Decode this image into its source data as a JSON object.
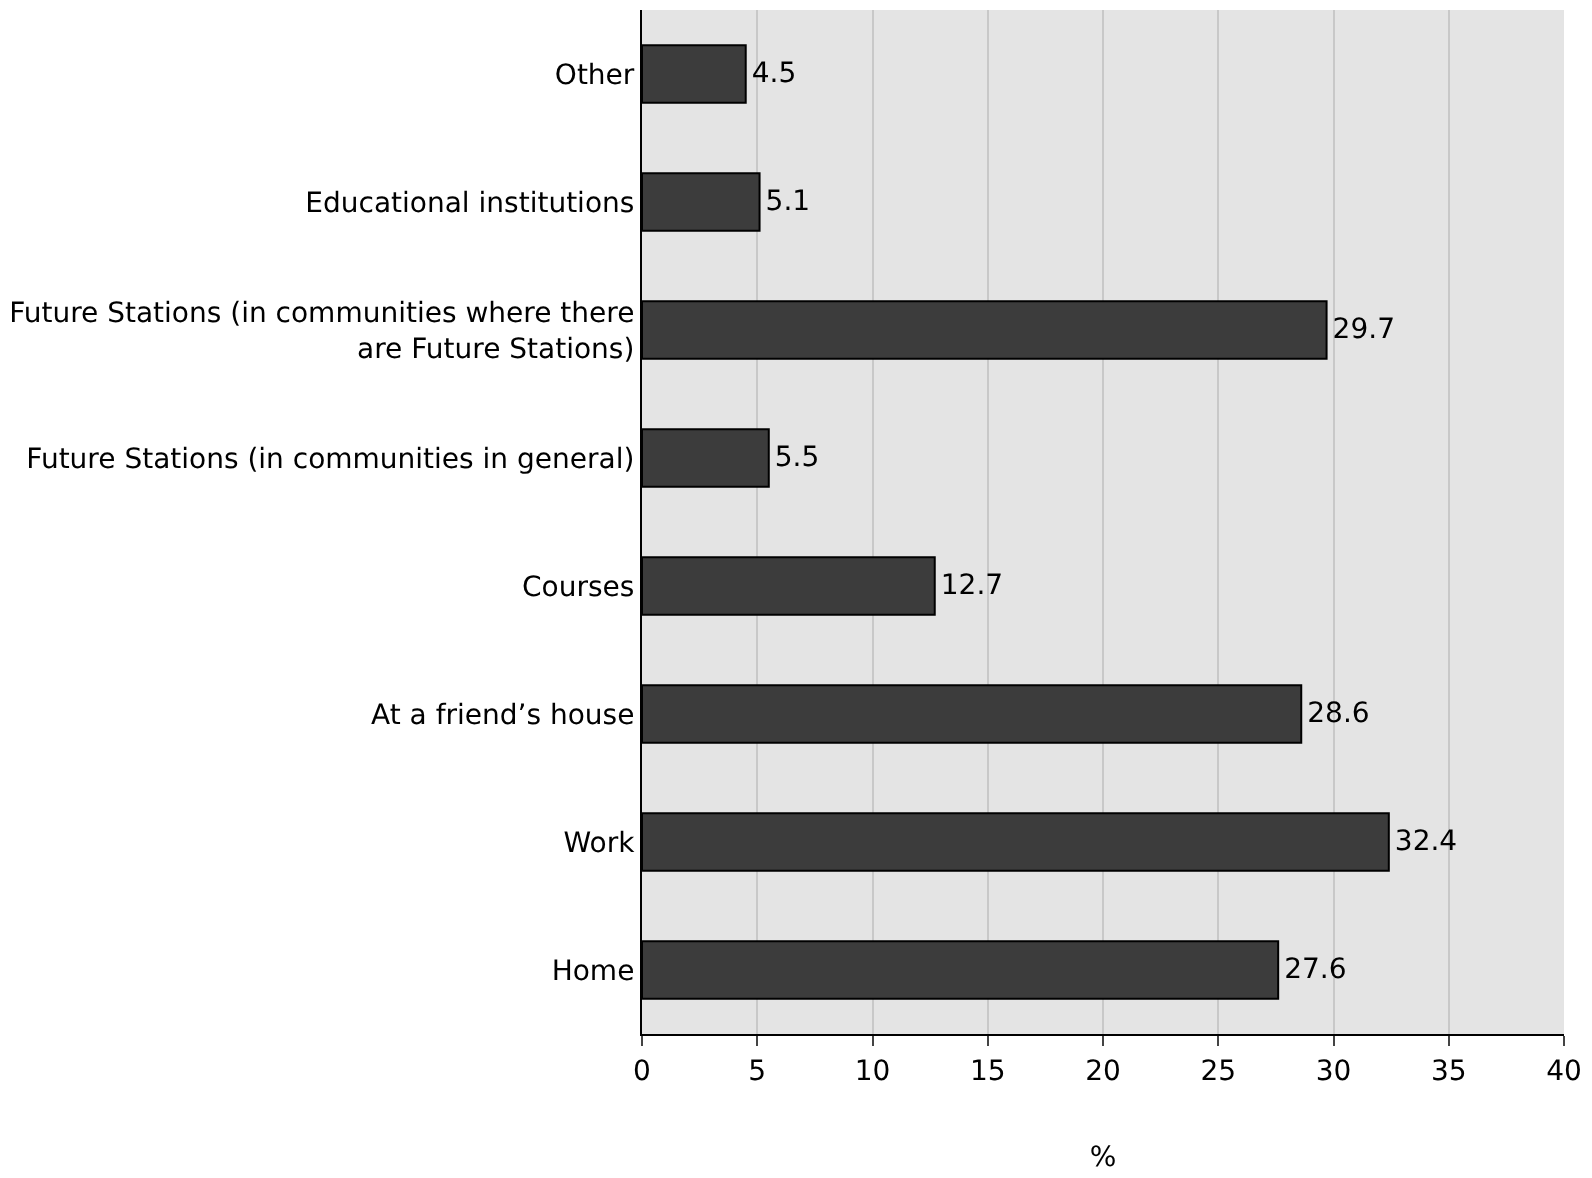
{
  "chart_data": {
    "type": "bar",
    "orientation": "horizontal",
    "xlabel": "%",
    "categories": [
      "Other",
      "Educational institutions",
      "Future Stations (in communities where there are Future Stations)",
      "Future Stations (in communities in general)",
      "Courses",
      "At a friend’s house",
      "Work",
      "Home"
    ],
    "values": [
      4.5,
      5.1,
      29.7,
      5.5,
      12.7,
      28.6,
      32.4,
      27.6
    ],
    "color": "#3c3c3c",
    "xlim": [
      0,
      40
    ],
    "xticks": [
      0,
      5,
      10,
      15,
      20,
      25,
      30,
      35,
      40
    ],
    "grid": "x",
    "data_labels": true,
    "legend": false
  }
}
